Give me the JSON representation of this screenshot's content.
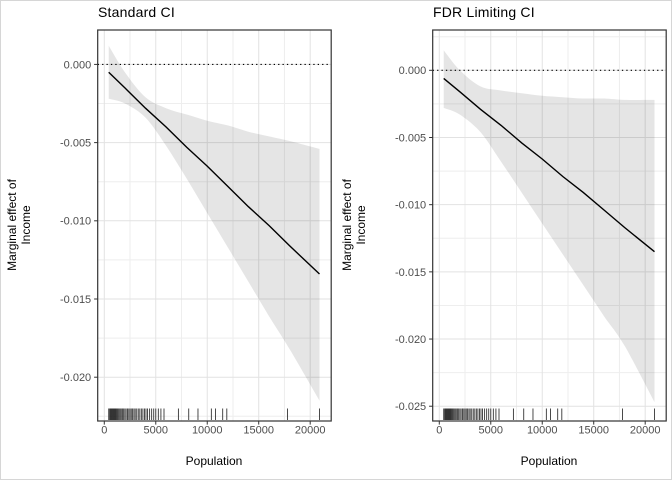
{
  "chart_data": {
    "type": "line",
    "description": "Two marginal-effect plots with confidence ribbons, rug marks and dotted zero reference line",
    "colors": {
      "band": "#000000",
      "band_opacity": 0.1,
      "line": "#000000",
      "zero_line": "#000000",
      "grid_major": "#e2e2e2",
      "grid_minor": "#eeeeee",
      "panel_border": "#333333",
      "tick_label": "#4d4d4d",
      "rug": "#1a1a1a"
    },
    "shared": {
      "x_axis_label": "Population",
      "y_axis_label_line1": "Marginal effect of",
      "y_axis_label_line2": "Income",
      "xlim": [
        -640,
        22040
      ],
      "xticks": [
        {
          "v": 0,
          "label": "0"
        },
        {
          "v": 5000,
          "label": "5000"
        },
        {
          "v": 10000,
          "label": "10000"
        },
        {
          "v": 15000,
          "label": "15000"
        },
        {
          "v": 20000,
          "label": "20000"
        }
      ],
      "x_minor": [
        2500,
        7500,
        12500,
        17500
      ],
      "rug_x": [
        430,
        520,
        560,
        600,
        640,
        680,
        720,
        760,
        800,
        850,
        900,
        950,
        1000,
        1060,
        1130,
        1200,
        1280,
        1360,
        1450,
        1550,
        1650,
        1760,
        1880,
        2000,
        2120,
        2250,
        2380,
        2500,
        2620,
        2750,
        2880,
        3000,
        3150,
        3300,
        3450,
        3600,
        3750,
        3900,
        4050,
        4200,
        4400,
        4600,
        4800,
        5000,
        5250,
        5500,
        5800,
        7200,
        8200,
        9100,
        10400,
        10800,
        11500,
        11900,
        17800,
        20900
      ]
    },
    "charts": [
      {
        "title": "Standard CI",
        "ylim": [
          -0.0228,
          0.0022
        ],
        "yticks": [
          {
            "v": 0.0,
            "label": "0.000"
          },
          {
            "v": -0.005,
            "label": "-0.005"
          },
          {
            "v": -0.01,
            "label": "-0.010"
          },
          {
            "v": -0.015,
            "label": "-0.015"
          },
          {
            "v": -0.02,
            "label": "-0.020"
          }
        ],
        "y_minor": [
          -0.0025,
          -0.0075,
          -0.0125,
          -0.0175,
          -0.0225
        ],
        "x": [
          430,
          2000,
          4000,
          6000,
          8000,
          10000,
          12000,
          14000,
          16000,
          18000,
          20900
        ],
        "line": [
          -0.0005,
          -0.0015,
          -0.0028,
          -0.004,
          -0.0053,
          -0.0065,
          -0.0078,
          -0.0091,
          -0.0103,
          -0.0116,
          -0.0134
        ],
        "upper": [
          0.0012,
          -0.0005,
          -0.0021,
          -0.0028,
          -0.0032,
          -0.0036,
          -0.0039,
          -0.0043,
          -0.0046,
          -0.0049,
          -0.0054
        ],
        "lower": [
          -0.0022,
          -0.0025,
          -0.0034,
          -0.0052,
          -0.0073,
          -0.0095,
          -0.0117,
          -0.0139,
          -0.0161,
          -0.0182,
          -0.0215
        ]
      },
      {
        "title": "FDR Limiting CI",
        "ylim": [
          -0.0261,
          0.003
        ],
        "yticks": [
          {
            "v": 0.0,
            "label": "0.000"
          },
          {
            "v": -0.005,
            "label": "-0.005"
          },
          {
            "v": -0.01,
            "label": "-0.010"
          },
          {
            "v": -0.015,
            "label": "-0.015"
          },
          {
            "v": -0.02,
            "label": "-0.020"
          },
          {
            "v": -0.025,
            "label": "-0.025"
          }
        ],
        "y_minor": [
          0.0025,
          -0.0025,
          -0.0075,
          -0.0125,
          -0.0175,
          -0.0225
        ],
        "x": [
          430,
          2000,
          4000,
          6000,
          8000,
          10000,
          12000,
          14000,
          16000,
          18000,
          20900
        ],
        "line": [
          -0.0006,
          -0.0016,
          -0.0029,
          -0.0041,
          -0.0054,
          -0.0066,
          -0.0079,
          -0.0091,
          -0.0104,
          -0.0117,
          -0.0135
        ],
        "upper": [
          0.0015,
          0.0,
          -0.0012,
          -0.0015,
          -0.0017,
          -0.0019,
          -0.002,
          -0.0021,
          -0.0021,
          -0.0022,
          -0.0022
        ],
        "lower": [
          -0.0028,
          -0.0033,
          -0.0046,
          -0.0068,
          -0.0091,
          -0.0114,
          -0.0137,
          -0.016,
          -0.0183,
          -0.0205,
          -0.0247
        ]
      }
    ]
  }
}
